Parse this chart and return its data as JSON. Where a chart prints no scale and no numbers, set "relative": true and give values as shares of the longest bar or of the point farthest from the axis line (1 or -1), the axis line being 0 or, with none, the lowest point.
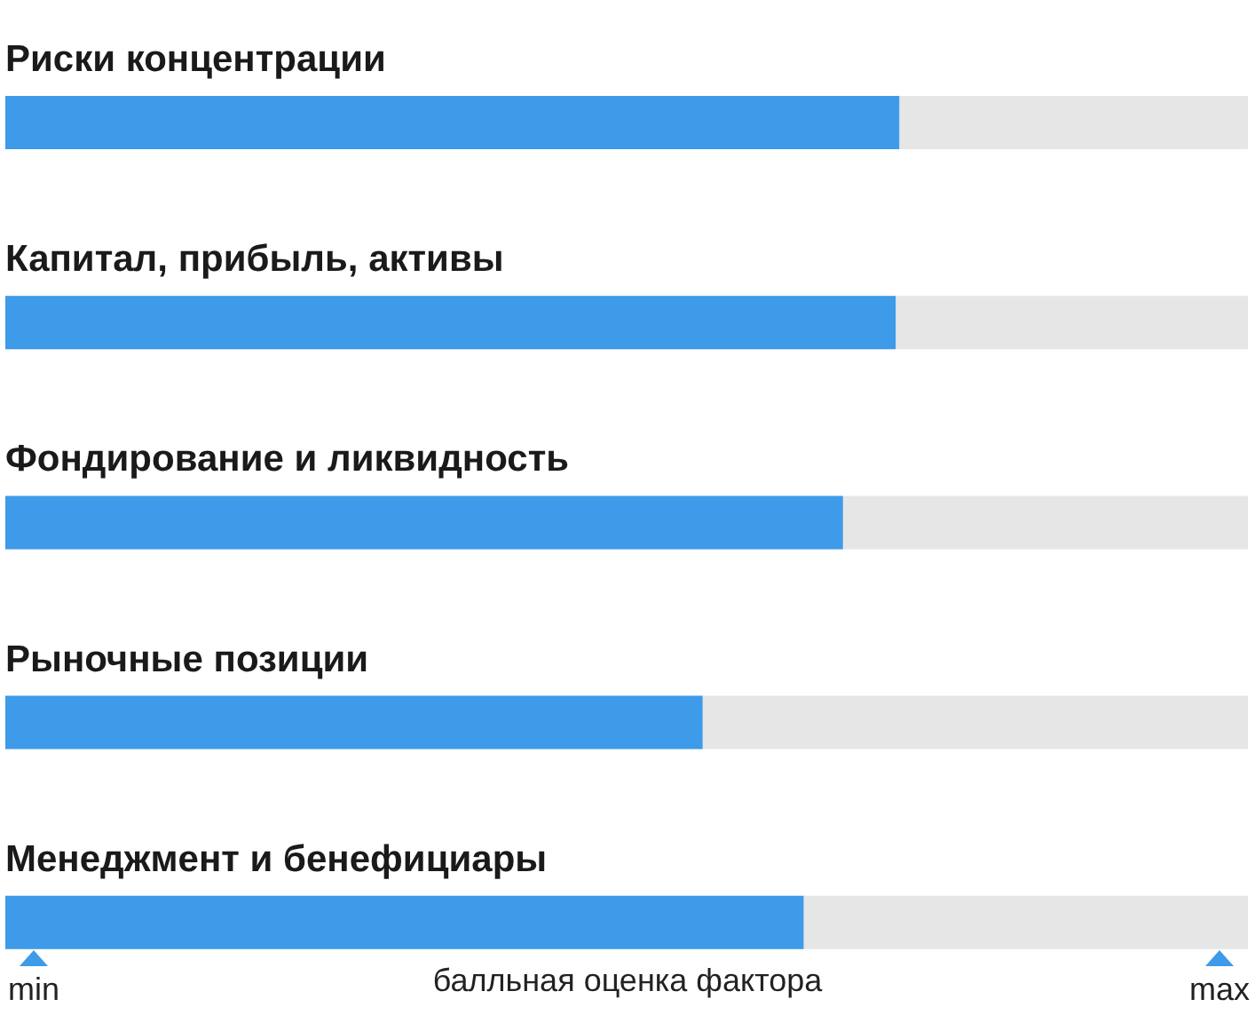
{
  "chart_data": {
    "type": "bar",
    "orientation": "horizontal",
    "relative": true,
    "categories": [
      "Риски концентрации",
      "Капитал, прибыль, активы",
      "Фондирование и ликвидность",
      "Рыночные позиции",
      "Менеджмент и бенефициары"
    ],
    "values": [
      1,
      0.996,
      0.937,
      0.78,
      0.893
    ],
    "color": "#3d9be9",
    "xlabel": "балльная оценка фактора",
    "annotations": [
      "min",
      "max"
    ]
  }
}
